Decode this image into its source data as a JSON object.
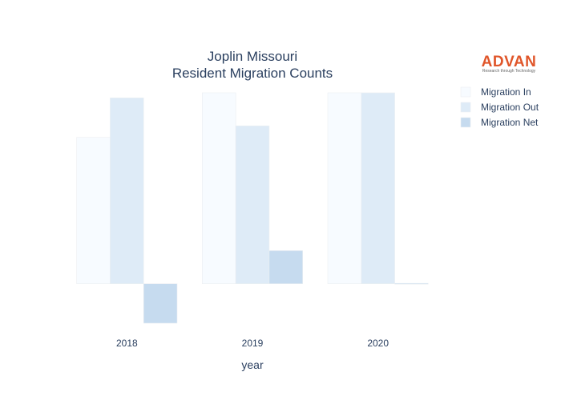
{
  "chart_data": {
    "type": "bar",
    "title": [
      "Joplin Missouri",
      "Resident Migration Counts"
    ],
    "xlabel": "year",
    "ylabel": "",
    "categories": [
      "2018",
      "2019",
      "2020"
    ],
    "series": [
      {
        "name": "Migration In",
        "values": [
          1150,
          1500,
          1500
        ],
        "color": "#f7fbff"
      },
      {
        "name": "Migration Out",
        "values": [
          1460,
          1240,
          1500
        ],
        "color": "#deebf7"
      },
      {
        "name": "Migration Net",
        "values": [
          -310,
          260,
          0
        ],
        "color": "#c6dbef"
      }
    ],
    "ylim": [
      -310,
      1500
    ],
    "grid": false,
    "legend_position": "top-right"
  },
  "logo": {
    "name": "ADVAN",
    "tagline": "Research through Technology"
  }
}
